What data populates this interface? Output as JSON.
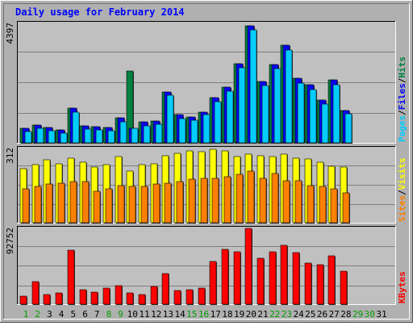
{
  "chart_data": {
    "type": "bar",
    "title": "Daily usage for February 2014",
    "x": {
      "categories": [
        "1",
        "2",
        "3",
        "4",
        "5",
        "6",
        "7",
        "8",
        "9",
        "10",
        "11",
        "12",
        "13",
        "14",
        "15",
        "16",
        "17",
        "18",
        "19",
        "20",
        "21",
        "22",
        "23",
        "24",
        "25",
        "26",
        "27",
        "28",
        "29",
        "30",
        "31"
      ],
      "weekend_days": [
        "1",
        "2",
        "8",
        "9",
        "15",
        "16",
        "22",
        "23",
        "29",
        "30"
      ]
    },
    "panels": [
      {
        "id": "hits",
        "ymax_label": "4397",
        "ymax": 4397,
        "legend": [
          {
            "text": "Pages",
            "color": "#00ccff"
          },
          {
            "text": "Files",
            "color": "#0000ff"
          },
          {
            "text": "Hits",
            "color": "#008040"
          }
        ],
        "legend_separator": "/",
        "series": [
          {
            "name": "Hits",
            "color": "#008040",
            "values": [
              540,
              650,
              560,
              460,
              1270,
              630,
              580,
              550,
              910,
              2620,
              760,
              790,
              1870,
              1020,
              940,
              1120,
              1650,
              2030,
              2900,
              4290,
              2250,
              2850,
              3580,
              2370,
              2120,
              1560,
              2310,
              1170,
              0,
              0,
              0
            ]
          },
          {
            "name": "Files",
            "color": "#0000ff",
            "values": [
              540,
              650,
              560,
              460,
              1270,
              630,
              580,
              550,
              910,
              540,
              760,
              790,
              1870,
              1020,
              940,
              1120,
              1650,
              2030,
              2900,
              4290,
              2250,
              2850,
              3580,
              2370,
              2120,
              1560,
              2310,
              1170,
              0,
              0,
              0
            ]
          },
          {
            "name": "Pages",
            "color": "#00ccff",
            "values": [
              410,
              540,
              440,
              340,
              1110,
              510,
              460,
              450,
              780,
              530,
              610,
              680,
              1740,
              890,
              840,
              1020,
              1500,
              1880,
              2740,
              4140,
              2100,
              2710,
              3400,
              2190,
              1960,
              1420,
              2120,
              1050,
              0,
              0,
              0
            ]
          }
        ]
      },
      {
        "id": "visits",
        "ymax_label": "312",
        "ymax": 312,
        "legend": [
          {
            "text": "Sites",
            "color": "#ff8000"
          },
          {
            "text": "Visits",
            "color": "#ffff00"
          }
        ],
        "legend_separator": "/",
        "series": [
          {
            "name": "Visits",
            "color": "#ffff00",
            "values": [
              225,
              240,
              260,
              245,
              270,
              250,
              230,
              240,
              275,
              215,
              240,
              245,
              280,
              290,
              300,
              295,
              305,
              300,
              275,
              285,
              280,
              275,
              285,
              270,
              265,
              250,
              235,
              230,
              0,
              0,
              0
            ]
          },
          {
            "name": "Sites",
            "color": "#ff8000",
            "values": [
              140,
              150,
              160,
              165,
              170,
              170,
              130,
              140,
              155,
              150,
              150,
              160,
              165,
              170,
              180,
              185,
              185,
              190,
              200,
              215,
              185,
              205,
              175,
              175,
              155,
              150,
              140,
              125,
              0,
              0,
              0
            ]
          }
        ]
      },
      {
        "id": "kbytes",
        "ymax_label": "92752",
        "ymax": 92752,
        "legend": [
          {
            "text": "KBytes",
            "color": "#ff0000"
          }
        ],
        "legend_separator": "",
        "series": [
          {
            "name": "KBytes",
            "color": "#ff0000",
            "values": [
              10000,
              27000,
              12000,
              14000,
              65000,
              18000,
              15000,
              20000,
              22000,
              14000,
              12000,
              21000,
              37000,
              17000,
              18000,
              20000,
              52000,
              66000,
              63000,
              92000,
              56000,
              63000,
              71000,
              62000,
              50000,
              48000,
              59000,
              40000,
              0,
              0,
              0
            ]
          }
        ]
      }
    ],
    "colors": {
      "frame": "#b0b0b0",
      "plot_bg": "#c0c0c0",
      "title": "#0000ff",
      "axis_label": "#000000",
      "weekday_label": "#000000",
      "weekend_label": "#00a000"
    }
  }
}
